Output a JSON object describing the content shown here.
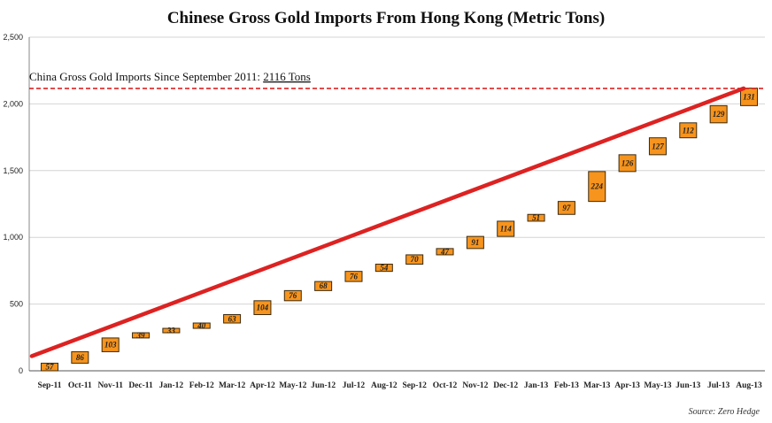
{
  "chart_data": {
    "type": "waterfall",
    "title": "Chinese Gross Gold Imports From Hong Kong (Metric Tons)",
    "xlabel": "",
    "ylabel": "",
    "ylim": [
      0,
      2500
    ],
    "yticks": [
      0,
      500,
      1000,
      1500,
      2000,
      2500
    ],
    "ytick_labels": [
      "0",
      "500",
      "1,000",
      "1,500",
      "2,000",
      "2,500"
    ],
    "categories": [
      "Sep-11",
      "Oct-11",
      "Nov-11",
      "Dec-11",
      "Jan-12",
      "Feb-12",
      "Mar-12",
      "Apr-12",
      "May-12",
      "Jun-12",
      "Jul-12",
      "Aug-12",
      "Sep-12",
      "Oct-12",
      "Nov-12",
      "Dec-12",
      "Jan-13",
      "Feb-13",
      "Mar-13",
      "Apr-13",
      "May-13",
      "Jun-13",
      "Jul-13",
      "Aug-13"
    ],
    "values": [
      57,
      86,
      103,
      39,
      33,
      40,
      63,
      104,
      76,
      68,
      76,
      54,
      70,
      47,
      91,
      114,
      51,
      97,
      224,
      126,
      127,
      112,
      129,
      131
    ],
    "value_labels": [
      "57",
      "86",
      "103",
      "39",
      "33",
      "40",
      "63",
      "104",
      "76",
      "68",
      "76",
      "54",
      "70",
      "47",
      "91",
      "114",
      "51",
      "97",
      "224",
      "126",
      "127",
      "112",
      "129",
      "131"
    ],
    "total_line": {
      "value": 2116,
      "label_prefix": "China Gross Gold Imports Since September 2011: ",
      "label_value": "2116 Tons",
      "color": "#dd2222"
    },
    "trend_line": {
      "start_value": 110,
      "end_value": 2116,
      "color": "#dd2222"
    },
    "bar_color": "#f7941d",
    "bar_edge_color": "#3a2a10",
    "grid": true,
    "source": "Source: Zero Hedge"
  }
}
